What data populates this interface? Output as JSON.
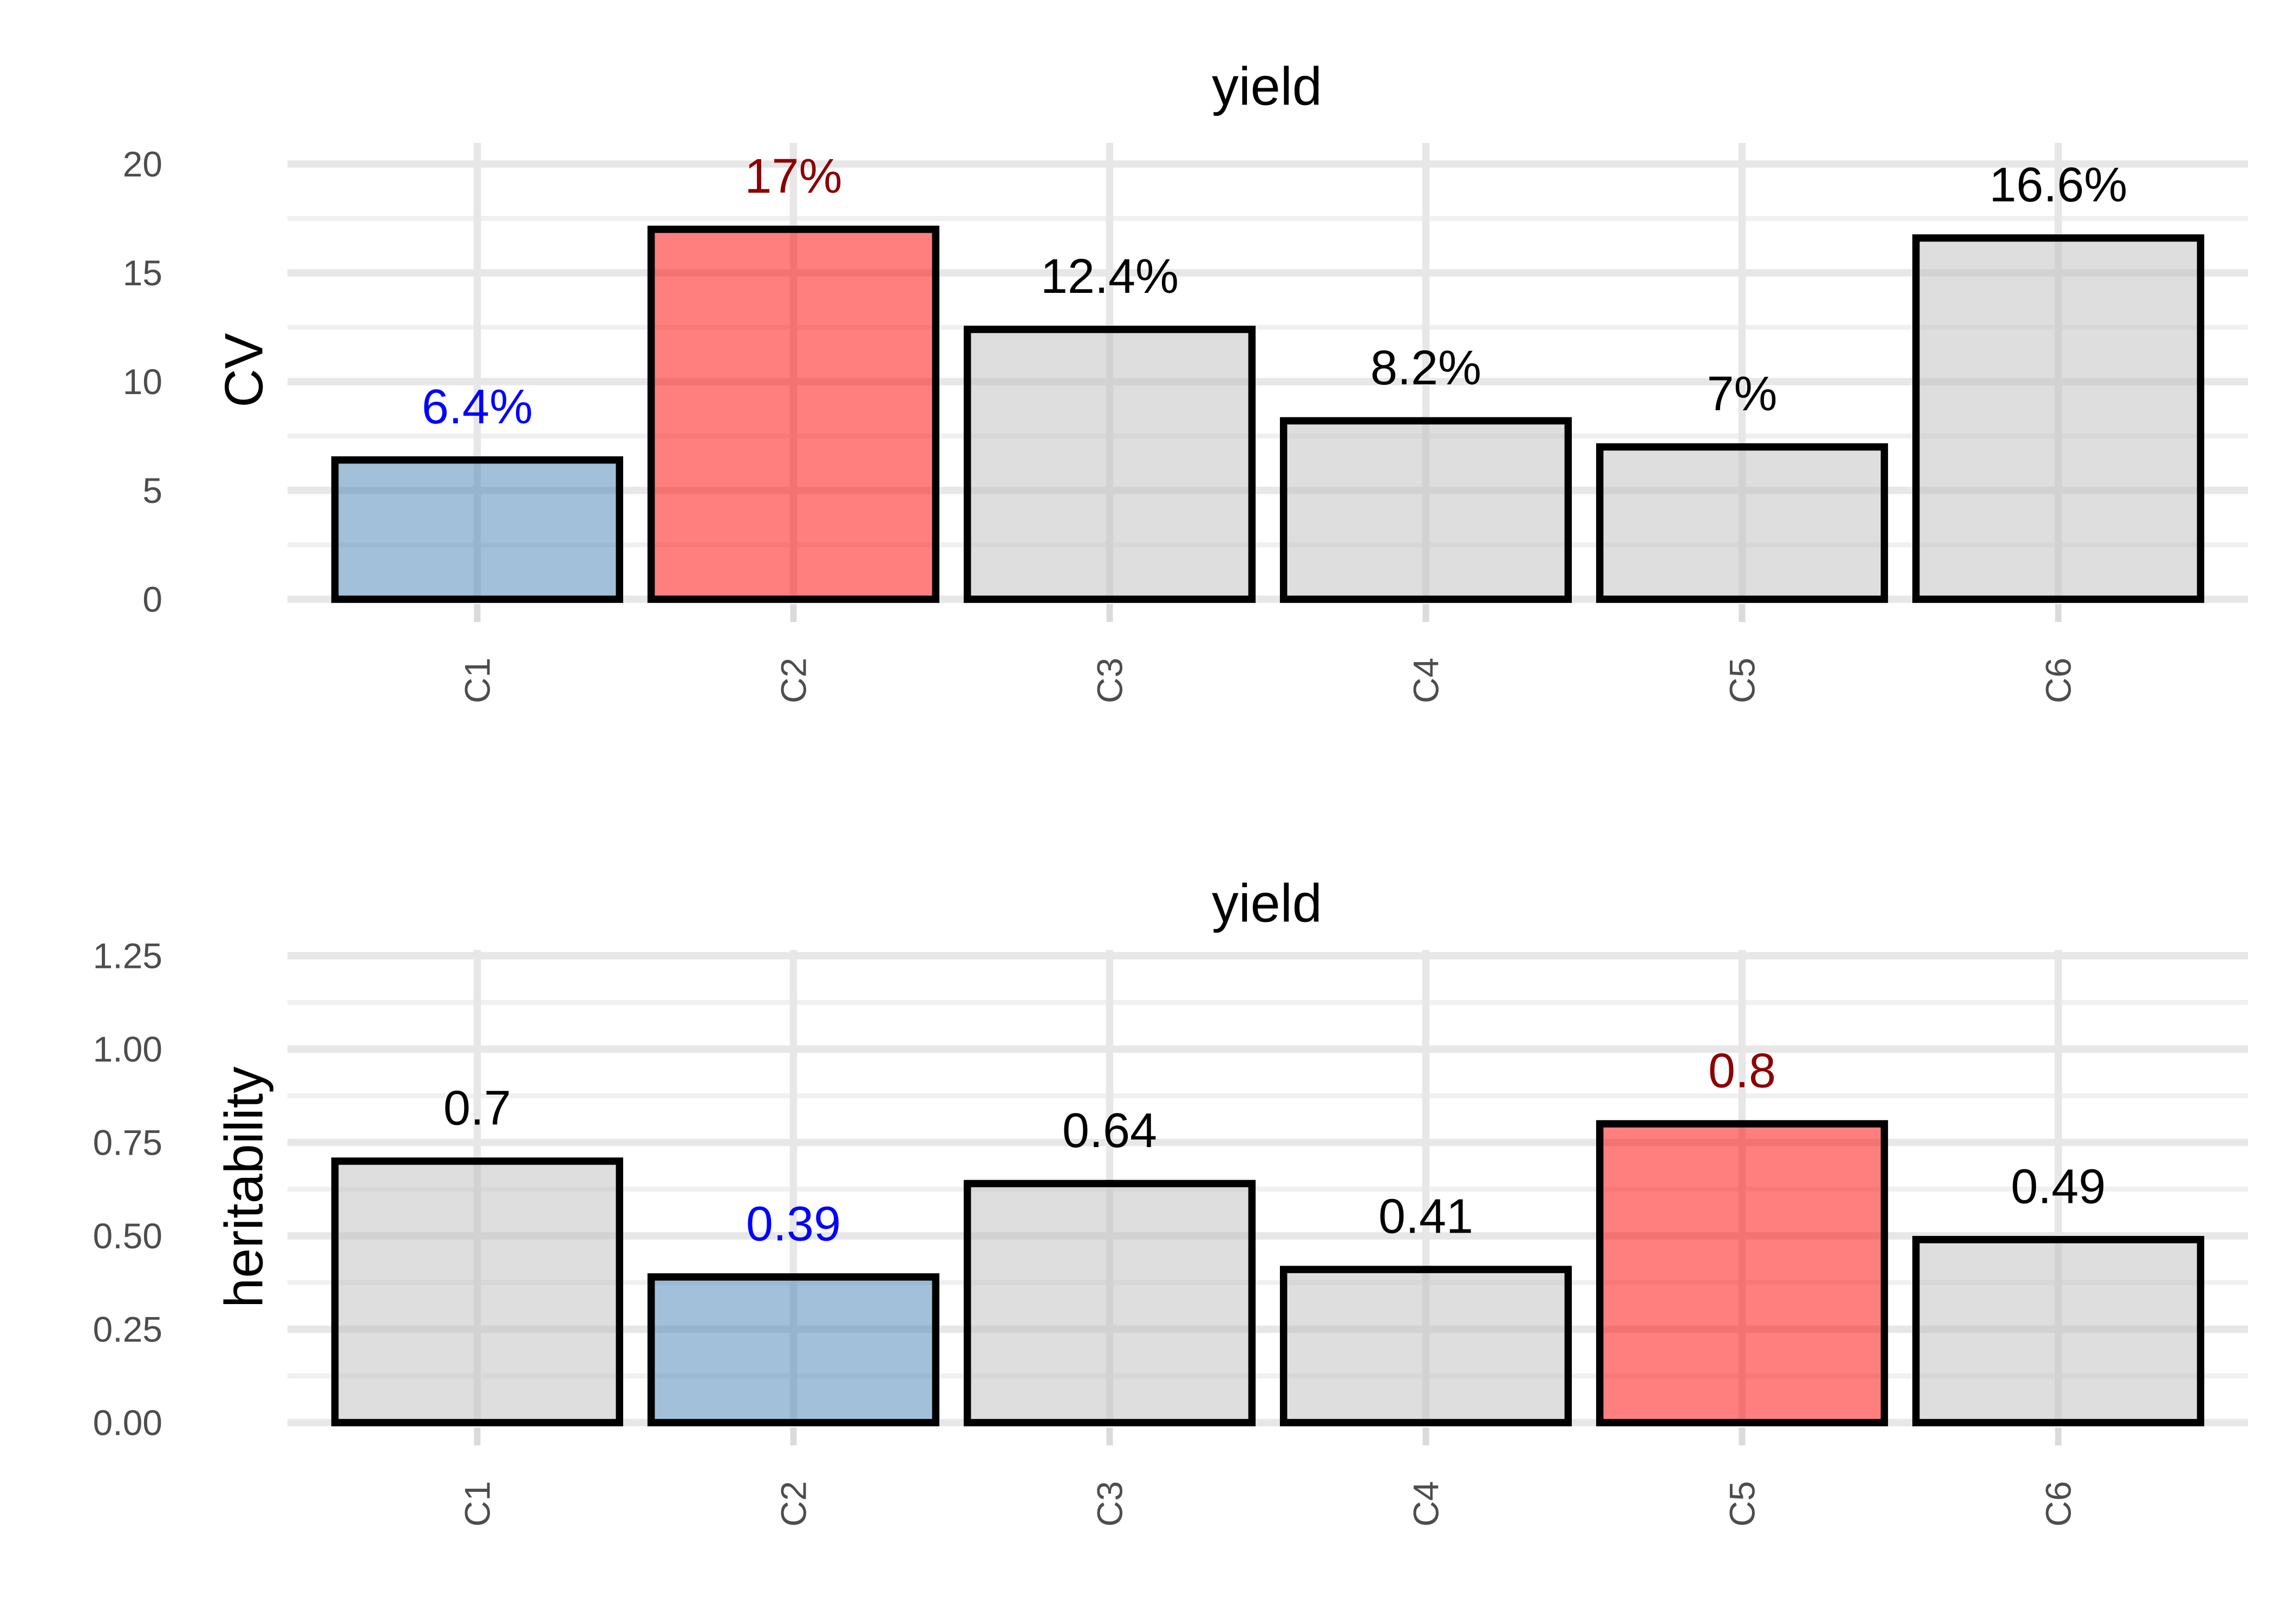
{
  "figure": {
    "background": "#FFFFFF",
    "n_panels": 2
  },
  "chart_data": [
    {
      "type": "bar",
      "title": "yield",
      "xlabel": "",
      "ylabel": "CV",
      "categories": [
        "C1",
        "C2",
        "C3",
        "C4",
        "C5",
        "C6"
      ],
      "values": [
        6.4,
        17,
        12.4,
        8.2,
        7,
        16.6
      ],
      "bar_labels": [
        "6.4%",
        "17%",
        "12.4%",
        "8.2%",
        "7%",
        "16.6%"
      ],
      "bar_label_colors": [
        "#0000FF",
        "#8B0000",
        "#000000",
        "#000000",
        "#000000",
        "#000000"
      ],
      "bar_fills": [
        "rgba(70,130,180,0.5)",
        "rgba(255,0,0,0.5)",
        "rgba(190,190,190,0.5)",
        "rgba(190,190,190,0.5)",
        "rgba(190,190,190,0.5)",
        "rgba(190,190,190,0.5)"
      ],
      "bar_fill_hex_over_white": [
        "#A2C0D9",
        "#FF8080",
        "#DEDEDE",
        "#DEDEDE",
        "#DEDEDE",
        "#DEDEDE"
      ],
      "bar_outline": "#000000",
      "highlight_low": {
        "category": "C1",
        "label": "6.4%",
        "color": "#0000FF"
      },
      "highlight_high": {
        "category": "C2",
        "label": "17%",
        "color": "#8B0000"
      },
      "yticks": [
        0,
        5,
        10,
        15,
        20
      ],
      "ytick_labels": [
        "0",
        "5",
        "10",
        "15",
        "20"
      ],
      "minor_step": 2.5,
      "ylim": [
        0,
        21
      ],
      "grid": true,
      "legend_position": "none"
    },
    {
      "type": "bar",
      "title": "yield",
      "xlabel": "",
      "ylabel": "heritability",
      "categories": [
        "C1",
        "C2",
        "C3",
        "C4",
        "C5",
        "C6"
      ],
      "values": [
        0.7,
        0.39,
        0.64,
        0.41,
        0.8,
        0.49
      ],
      "bar_labels": [
        "0.7",
        "0.39",
        "0.64",
        "0.41",
        "0.8",
        "0.49"
      ],
      "bar_label_colors": [
        "#000000",
        "#0000FF",
        "#000000",
        "#000000",
        "#8B0000",
        "#000000"
      ],
      "bar_fills": [
        "rgba(190,190,190,0.5)",
        "rgba(70,130,180,0.5)",
        "rgba(190,190,190,0.5)",
        "rgba(190,190,190,0.5)",
        "rgba(255,0,0,0.5)",
        "rgba(190,190,190,0.5)"
      ],
      "bar_fill_hex_over_white": [
        "#DEDEDE",
        "#A2C0D9",
        "#DEDEDE",
        "#DEDEDE",
        "#FF8080",
        "#DEDEDE"
      ],
      "bar_outline": "#000000",
      "highlight_low": {
        "category": "C2",
        "label": "0.39",
        "color": "#0000FF"
      },
      "highlight_high": {
        "category": "C5",
        "label": "0.8",
        "color": "#8B0000"
      },
      "yticks": [
        0,
        0.25,
        0.5,
        0.75,
        1,
        1.25
      ],
      "ytick_labels": [
        "0.00",
        "0.25",
        "0.50",
        "0.75",
        "1.00",
        "1.25"
      ],
      "minor_step": 0.125,
      "ylim": [
        0,
        1.27
      ],
      "grid": true,
      "legend_position": "none"
    }
  ],
  "style": {
    "tick_label_color": "#4D4D4D",
    "title_color": "#000000",
    "grid_major_color": "#E7E7E7",
    "grid_minor_color": "#F0F0F0",
    "axis_tick_color": "#DBDBDB"
  }
}
